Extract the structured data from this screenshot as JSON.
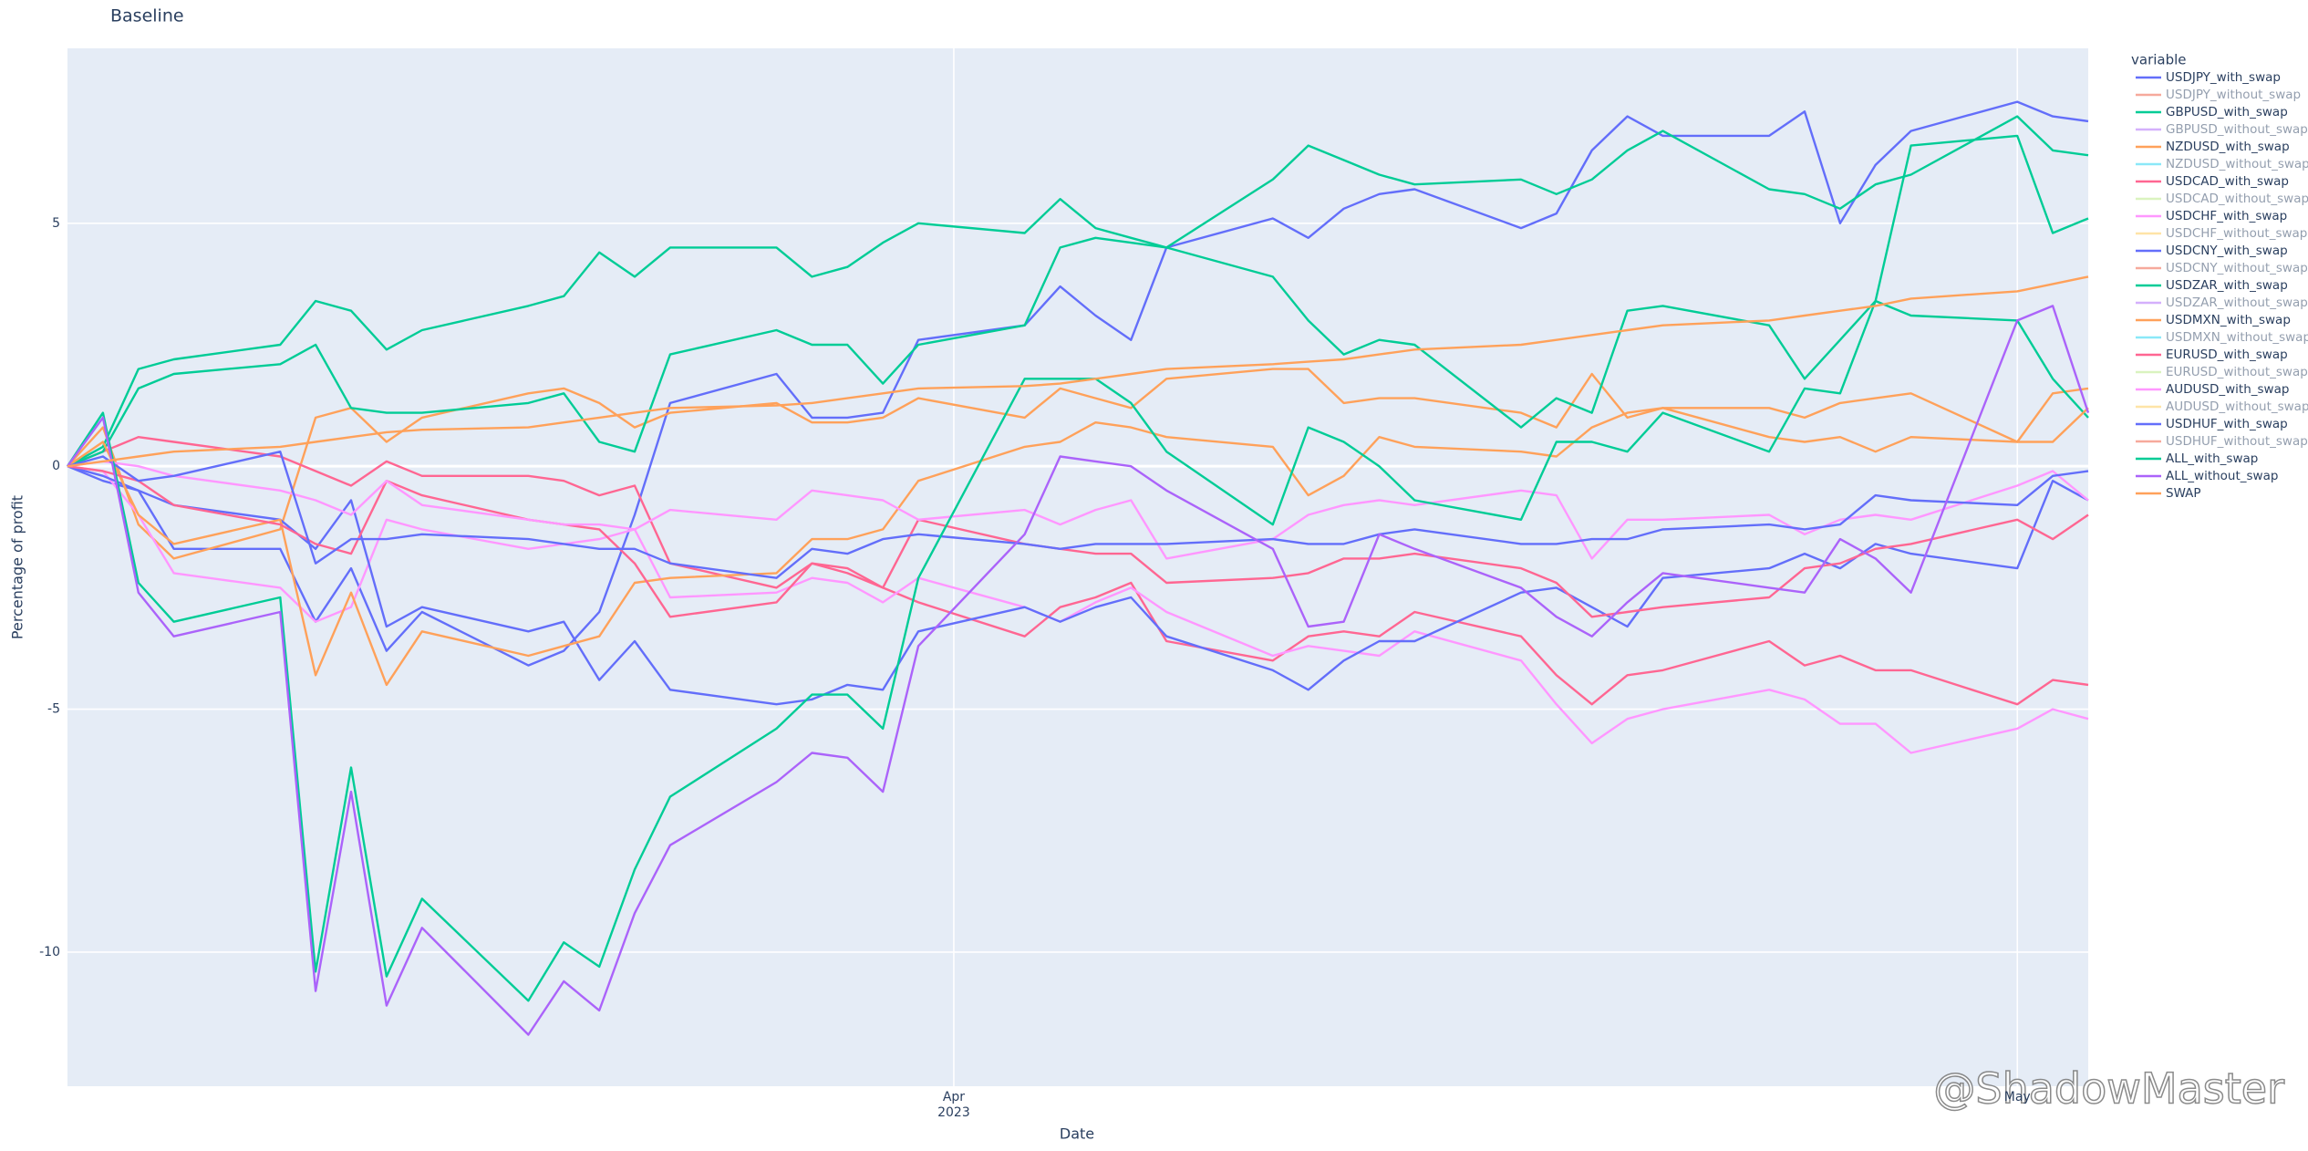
{
  "chart_data": {
    "type": "line",
    "title": "Baseline",
    "xlabel": "Date",
    "ylabel": "Percentage of profit",
    "legend_title": "variable",
    "watermark": "@ShadowMaster",
    "x": [
      "2023-03-07",
      "2023-03-08",
      "2023-03-09",
      "2023-03-10",
      "2023-03-13",
      "2023-03-14",
      "2023-03-15",
      "2023-03-16",
      "2023-03-17",
      "2023-03-20",
      "2023-03-21",
      "2023-03-22",
      "2023-03-23",
      "2023-03-24",
      "2023-03-27",
      "2023-03-28",
      "2023-03-29",
      "2023-03-30",
      "2023-03-31",
      "2023-04-03",
      "2023-04-04",
      "2023-04-05",
      "2023-04-06",
      "2023-04-07",
      "2023-04-10",
      "2023-04-11",
      "2023-04-12",
      "2023-04-13",
      "2023-04-14",
      "2023-04-17",
      "2023-04-18",
      "2023-04-19",
      "2023-04-20",
      "2023-04-21",
      "2023-04-24",
      "2023-04-25",
      "2023-04-26",
      "2023-04-27",
      "2023-04-28",
      "2023-05-01",
      "2023-05-02",
      "2023-05-03"
    ],
    "xlim": [
      "2023-03-07",
      "2023-05-03"
    ],
    "xticks": [
      {
        "value": "2023-04-01",
        "label": "Apr 2023"
      },
      {
        "value": "2023-05-01",
        "label": "May"
      }
    ],
    "ylim": [
      -12.76,
      8.6
    ],
    "yticks": [
      -10,
      -5,
      0,
      5
    ],
    "grid": true,
    "legend": "right",
    "series": [
      {
        "name": "USDJPY_with_swap",
        "color": "#636efa",
        "values": [
          0,
          -0.3,
          -0.5,
          -1.7,
          -1.7,
          -3.2,
          -2.1,
          -3.8,
          -3.0,
          -4.1,
          -3.8,
          -3.0,
          -1.0,
          1.3,
          1.9,
          1.0,
          1.0,
          1.1,
          2.6,
          2.9,
          3.7,
          3.1,
          2.6,
          4.5,
          5.1,
          4.7,
          5.3,
          5.6,
          5.7,
          4.9,
          5.2,
          6.5,
          7.2,
          6.8,
          6.8,
          7.3,
          5.0,
          6.2,
          6.9,
          7.5,
          7.2,
          7.1
        ]
      },
      {
        "name": "USDJPY_without_swap",
        "color": "#EF553B",
        "visible": "legendonly"
      },
      {
        "name": "GBPUSD_with_swap",
        "color": "#00cc96",
        "values": [
          0,
          0.4,
          2.0,
          2.2,
          2.5,
          3.4,
          3.2,
          2.4,
          2.8,
          3.3,
          3.5,
          4.4,
          3.9,
          4.5,
          4.5,
          3.9,
          4.1,
          4.6,
          5.0,
          4.8,
          5.5,
          4.9,
          4.7,
          4.5,
          5.9,
          6.6,
          6.3,
          6.0,
          5.8,
          5.9,
          5.6,
          5.9,
          6.5,
          6.9,
          5.7,
          5.6,
          5.3,
          5.8,
          6.0,
          7.2,
          6.5,
          6.4
        ]
      },
      {
        "name": "GBPUSD_without_swap",
        "color": "#ab63fa",
        "visible": "legendonly"
      },
      {
        "name": "NZDUSD_with_swap",
        "color": "#FFA15A",
        "values": [
          0,
          0.8,
          -1.2,
          -1.9,
          -1.3,
          1.0,
          1.2,
          0.5,
          1.0,
          1.5,
          1.6,
          1.3,
          0.8,
          1.1,
          1.3,
          0.9,
          0.9,
          1.0,
          1.4,
          1.0,
          1.6,
          1.4,
          1.2,
          1.8,
          2.0,
          2.0,
          1.3,
          1.4,
          1.4,
          1.1,
          0.8,
          1.9,
          1.0,
          1.2,
          1.2,
          1.0,
          1.3,
          1.4,
          1.5,
          0.5,
          1.5,
          1.6
        ]
      },
      {
        "name": "NZDUSD_without_swap",
        "color": "#19d3f3",
        "visible": "legendonly"
      },
      {
        "name": "USDCAD_with_swap",
        "color": "#FF6692",
        "values": [
          0,
          0.3,
          0.6,
          0.5,
          0.2,
          -0.1,
          -0.4,
          0.1,
          -0.2,
          -0.2,
          -0.3,
          -0.6,
          -0.4,
          -2.0,
          -2.5,
          -2.0,
          -2.1,
          -2.5,
          -2.8,
          -3.5,
          -2.9,
          -2.7,
          -2.4,
          -3.6,
          -4.0,
          -3.5,
          -3.4,
          -3.5,
          -3.0,
          -3.5,
          -4.3,
          -4.9,
          -4.3,
          -4.2,
          -3.6,
          -4.1,
          -3.9,
          -4.2,
          -4.2,
          -4.9,
          -4.4,
          -4.5
        ]
      },
      {
        "name": "USDCAD_without_swap",
        "color": "#B6E880",
        "visible": "legendonly"
      },
      {
        "name": "USDCHF_with_swap",
        "color": "#FF97FF",
        "values": [
          0,
          -0.1,
          -1.0,
          -2.2,
          -2.5,
          -3.2,
          -2.9,
          -1.1,
          -1.3,
          -1.7,
          -1.6,
          -1.5,
          -1.3,
          -2.7,
          -2.6,
          -2.3,
          -2.4,
          -2.8,
          -2.3,
          -2.9,
          -3.2,
          -2.8,
          -2.5,
          -3.0,
          -3.9,
          -3.7,
          -3.8,
          -3.9,
          -3.4,
          -4.0,
          -4.9,
          -5.7,
          -5.2,
          -5.0,
          -4.6,
          -4.8,
          -5.3,
          -5.3,
          -5.9,
          -5.4,
          -5.0,
          -5.2
        ]
      },
      {
        "name": "USDCHF_without_swap",
        "color": "#FECB52",
        "visible": "legendonly"
      },
      {
        "name": "USDCNY_with_swap",
        "color": "#636efa",
        "values": [
          0,
          -0.2,
          -0.5,
          -0.8,
          -1.1,
          -1.7,
          -0.7,
          -3.3,
          -2.9,
          -3.4,
          -3.2,
          -4.4,
          -3.6,
          -4.6,
          -4.9,
          -4.8,
          -4.5,
          -4.6,
          -3.4,
          -2.9,
          -3.2,
          -2.9,
          -2.7,
          -3.5,
          -4.2,
          -4.6,
          -4.0,
          -3.6,
          -3.6,
          -2.6,
          -2.5,
          -2.9,
          -3.3,
          -2.3,
          -2.1,
          -1.8,
          -2.1,
          -1.6,
          -1.8,
          -2.1,
          -0.3,
          -0.7
        ]
      },
      {
        "name": "USDCNY_without_swap",
        "color": "#EF553B",
        "visible": "legendonly"
      },
      {
        "name": "USDZAR_with_swap",
        "color": "#00cc96",
        "values": [
          0,
          0.3,
          1.6,
          1.9,
          2.1,
          2.5,
          1.2,
          1.1,
          1.1,
          1.3,
          1.5,
          0.5,
          0.3,
          2.3,
          2.8,
          2.5,
          2.5,
          1.7,
          2.5,
          2.9,
          4.5,
          4.7,
          4.6,
          4.5,
          3.9,
          3.0,
          2.3,
          2.6,
          2.5,
          0.8,
          1.4,
          1.1,
          3.2,
          3.3,
          2.9,
          1.8,
          2.6,
          3.4,
          3.1,
          3.0,
          1.8,
          1.0
        ]
      },
      {
        "name": "USDZAR_without_swap",
        "color": "#ab63fa",
        "visible": "legendonly"
      },
      {
        "name": "USDMXN_with_swap",
        "color": "#FFA15A",
        "values": [
          0,
          0.5,
          -1.0,
          -1.6,
          -1.1,
          -4.3,
          -2.6,
          -4.5,
          -3.4,
          -3.9,
          -3.7,
          -3.5,
          -2.4,
          -2.3,
          -2.2,
          -1.5,
          -1.5,
          -1.3,
          -0.3,
          0.4,
          0.5,
          0.9,
          0.8,
          0.6,
          0.4,
          -0.6,
          -0.2,
          0.6,
          0.4,
          0.3,
          0.2,
          0.8,
          1.1,
          1.2,
          0.6,
          0.5,
          0.6,
          0.3,
          0.6,
          0.5,
          0.5,
          1.2
        ]
      },
      {
        "name": "USDMXN_without_swap",
        "color": "#19d3f3",
        "visible": "legendonly"
      },
      {
        "name": "EURUSD_with_swap",
        "color": "#FF6692",
        "values": [
          0,
          -0.1,
          -0.3,
          -0.8,
          -1.2,
          -1.6,
          -1.8,
          -0.3,
          -0.6,
          -1.1,
          -1.2,
          -1.3,
          -2.0,
          -3.1,
          -2.8,
          -2.0,
          -2.2,
          -2.5,
          -1.1,
          -1.6,
          -1.7,
          -1.8,
          -1.8,
          -2.4,
          -2.3,
          -2.2,
          -1.9,
          -1.9,
          -1.8,
          -2.1,
          -2.4,
          -3.1,
          -3.0,
          -2.9,
          -2.7,
          -2.1,
          -2.0,
          -1.7,
          -1.6,
          -1.1,
          -1.5,
          -1.0
        ]
      },
      {
        "name": "EURUSD_without_swap",
        "color": "#B6E880",
        "visible": "legendonly"
      },
      {
        "name": "AUDUSD_with_swap",
        "color": "#FF97FF",
        "values": [
          0,
          0.1,
          0.0,
          -0.2,
          -0.5,
          -0.7,
          -1.0,
          -0.3,
          -0.8,
          -1.1,
          -1.2,
          -1.2,
          -1.3,
          -0.9,
          -1.1,
          -0.5,
          -0.6,
          -0.7,
          -1.1,
          -0.9,
          -1.2,
          -0.9,
          -0.7,
          -1.9,
          -1.5,
          -1.0,
          -0.8,
          -0.7,
          -0.8,
          -0.5,
          -0.6,
          -1.9,
          -1.1,
          -1.1,
          -1.0,
          -1.4,
          -1.1,
          -1.0,
          -1.1,
          -0.4,
          -0.1,
          -0.7
        ]
      },
      {
        "name": "AUDUSD_without_swap",
        "color": "#FECB52",
        "visible": "legendonly"
      },
      {
        "name": "USDHUF_with_swap",
        "color": "#636efa",
        "values": [
          0,
          0.2,
          -0.3,
          -0.2,
          0.3,
          -2.0,
          -1.5,
          -1.5,
          -1.4,
          -1.5,
          -1.6,
          -1.7,
          -1.7,
          -2.0,
          -2.3,
          -1.7,
          -1.8,
          -1.5,
          -1.4,
          -1.6,
          -1.7,
          -1.6,
          -1.6,
          -1.6,
          -1.5,
          -1.6,
          -1.6,
          -1.4,
          -1.3,
          -1.6,
          -1.6,
          -1.5,
          -1.5,
          -1.3,
          -1.2,
          -1.3,
          -1.2,
          -0.6,
          -0.7,
          -0.8,
          -0.2,
          -0.1
        ]
      },
      {
        "name": "USDHUF_without_swap",
        "color": "#EF553B",
        "visible": "legendonly"
      },
      {
        "name": "ALL_with_swap",
        "color": "#00cc96",
        "values": [
          0,
          1.1,
          -2.4,
          -3.2,
          -2.7,
          -10.4,
          -6.2,
          -10.5,
          -8.9,
          -11.0,
          -9.8,
          -10.3,
          -8.3,
          -6.8,
          -5.4,
          -4.7,
          -4.7,
          -5.4,
          -2.3,
          1.8,
          1.8,
          1.8,
          1.3,
          0.3,
          -1.2,
          0.8,
          0.5,
          0.0,
          -0.7,
          -1.1,
          0.5,
          0.5,
          0.3,
          1.1,
          0.3,
          1.6,
          1.5,
          3.4,
          6.6,
          6.8,
          4.8,
          5.1
        ]
      },
      {
        "name": "ALL_without_swap",
        "color": "#ab63fa",
        "values": [
          0,
          1.0,
          -2.6,
          -3.5,
          -3.0,
          -10.8,
          -6.7,
          -11.1,
          -9.5,
          -11.7,
          -10.6,
          -11.2,
          -9.2,
          -7.8,
          -6.5,
          -5.9,
          -6.0,
          -6.7,
          -3.7,
          -1.4,
          0.2,
          0.1,
          0.0,
          -0.5,
          -1.7,
          -3.3,
          -3.2,
          -1.4,
          -1.7,
          -2.5,
          -3.1,
          -3.5,
          -2.8,
          -2.2,
          -2.5,
          -2.6,
          -1.5,
          -1.9,
          -2.6,
          3.0,
          3.3,
          1.1
        ]
      },
      {
        "name": "SWAP",
        "color": "#FFA15A",
        "values": [
          0,
          0.1,
          0.2,
          0.3,
          0.4,
          0.5,
          0.6,
          0.7,
          0.75,
          0.8,
          0.9,
          1.0,
          1.1,
          1.2,
          1.25,
          1.3,
          1.4,
          1.5,
          1.6,
          1.65,
          1.7,
          1.8,
          1.9,
          2.0,
          2.1,
          2.15,
          2.2,
          2.3,
          2.4,
          2.5,
          2.6,
          2.7,
          2.8,
          2.9,
          3.0,
          3.1,
          3.2,
          3.3,
          3.45,
          3.6,
          3.75,
          3.9
        ]
      }
    ]
  }
}
